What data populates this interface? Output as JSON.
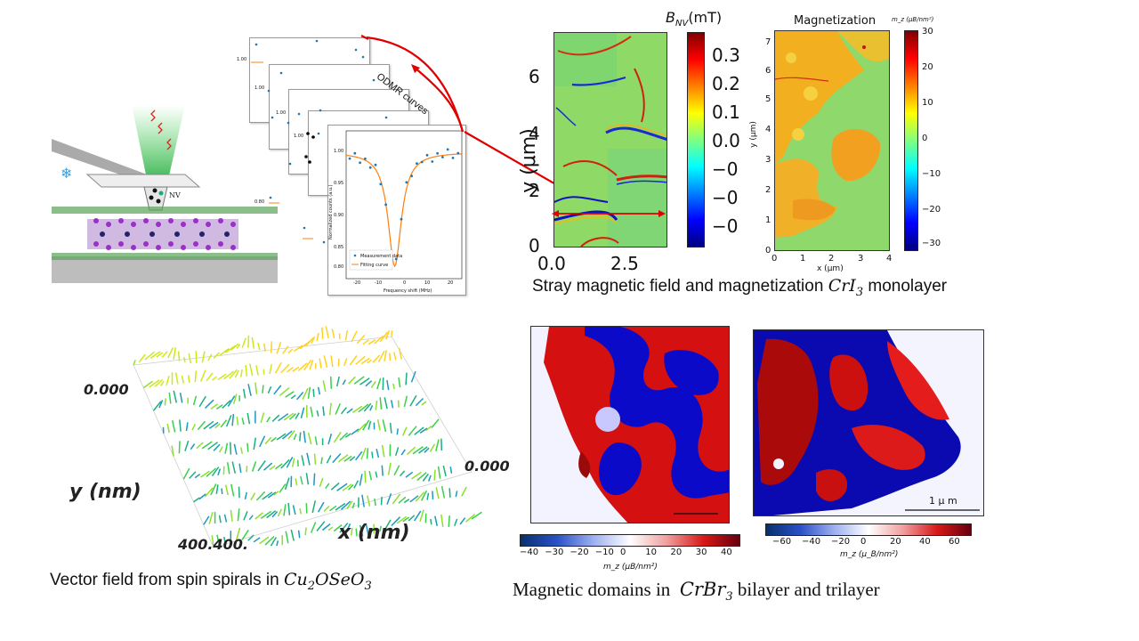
{
  "odmr": {
    "label": "ODMR curves",
    "ylabel": "Normalized counts (a.u.)",
    "xlabel": "Frequency shift (MHz)",
    "ytick_top": "1.00",
    "ytick_mid": "0.95",
    "ytick_low": "0.90",
    "ytick_bot": "0.85",
    "ytick_80": "0.80",
    "xticks": [
      "-20",
      "-10",
      "0",
      "10",
      "20"
    ],
    "legend_data": "Measurement data",
    "legend_fit": "Fitting curve",
    "nv_label": "NV"
  },
  "bnv_map": {
    "title_main": "B",
    "title_sub": "NV",
    "title_unit": "(mT)",
    "ylabel": "y (μm)",
    "yticks": [
      "0",
      "2",
      "4",
      "6"
    ],
    "xticks": [
      "0.0",
      "2.5"
    ],
    "cbar_ticks": [
      "0.3",
      "0.2",
      "0.1",
      "0.0",
      "−0",
      "−0",
      "−0"
    ]
  },
  "magnetization_map": {
    "title": "Magnetization",
    "cbar_label": "m_z (μB/nm²)",
    "ylabel": "y (μm)",
    "xlabel": "x (μm)",
    "yticks": [
      "0",
      "1",
      "2",
      "3",
      "4",
      "5",
      "6",
      "7"
    ],
    "xticks": [
      "0",
      "1",
      "2",
      "3",
      "4"
    ],
    "cbar_ticks": [
      "30",
      "20",
      "10",
      "0",
      "−10",
      "−20",
      "−30"
    ]
  },
  "caption_cri3": {
    "text": "Stray magnetic field and magnetization ",
    "formula_base": "CrI",
    "formula_sub": "3",
    "suffix": " monolayer"
  },
  "vector_field": {
    "y_label": "y (nm)",
    "x_label": "x (nm)",
    "tick_y_top": "0.000",
    "tick_x_right": "0.000",
    "tick_corner": "400.400."
  },
  "caption_cu2oseo3": {
    "text": "Vector field from spin spirals in ",
    "f1": "Cu",
    "s1": "2",
    "f2": "OSe",
    "s2": "O",
    "s3": "3"
  },
  "domains": {
    "scalebar_label": "1 μ m",
    "cbar1_ticks": [
      "−40",
      "−30",
      "−20",
      "−10",
      "0",
      "10",
      "20",
      "30",
      "40"
    ],
    "cbar1_label": "m_z (μB/nm²)",
    "cbar2_ticks": [
      "−60",
      "−40",
      "−20",
      "0",
      "20",
      "40",
      "60"
    ],
    "cbar2_label": "m_z (μ_B/nm²)"
  },
  "caption_crbr3": {
    "text": "Magnetic domains in  ",
    "formula_base": "CrBr",
    "formula_sub": "3",
    "suffix": " bilayer and trilayer"
  },
  "colors": {
    "jet_top": "#7f0000",
    "jet_bottom": "#00007f",
    "red_blue_top": "#67000d",
    "red_blue_bottom": "#08306b",
    "odmr_data": "#1f77b4",
    "odmr_fit": "#ff7f0e",
    "arrow_red": "#e00000"
  }
}
